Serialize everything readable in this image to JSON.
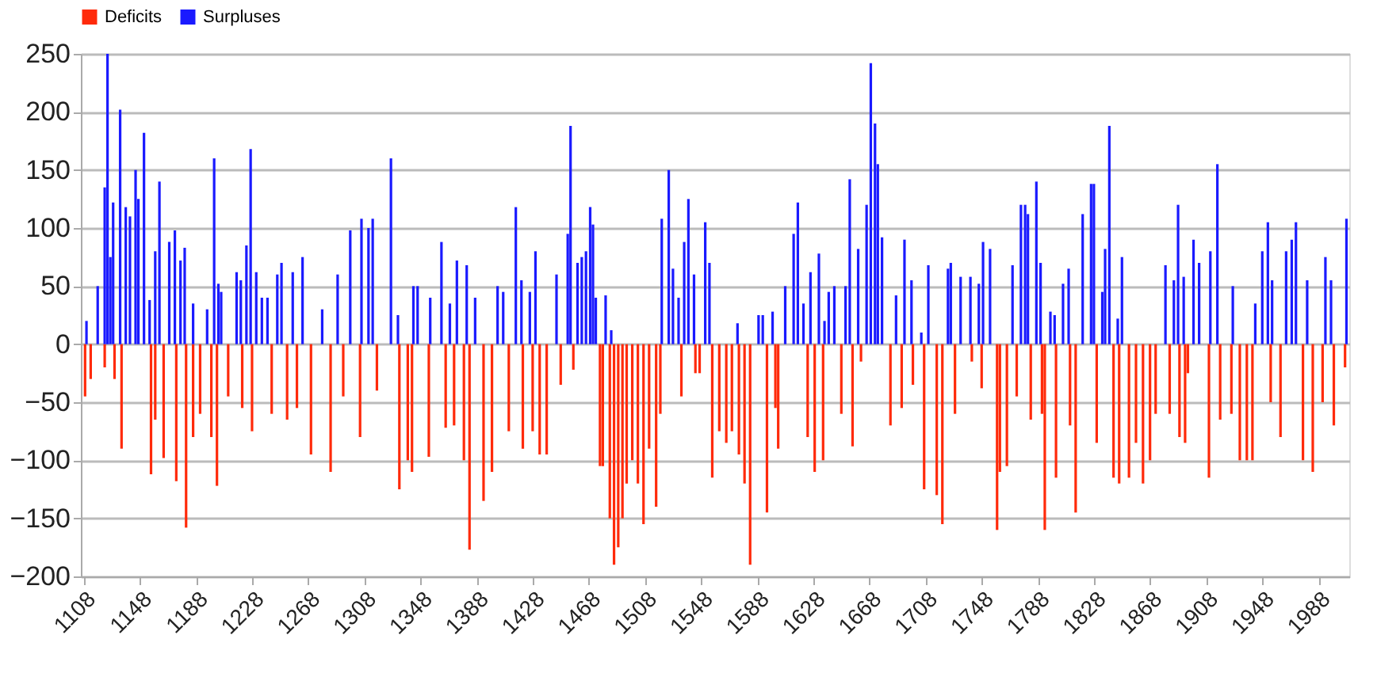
{
  "chart_data": {
    "type": "bar",
    "xlim": [
      1106,
      2010
    ],
    "xticks": [
      1108,
      1148,
      1188,
      1228,
      1268,
      1308,
      1348,
      1388,
      1428,
      1468,
      1508,
      1548,
      1588,
      1628,
      1668,
      1708,
      1748,
      1788,
      1828,
      1868,
      1908,
      1948,
      1988
    ],
    "ylim": [
      -200,
      250
    ],
    "yticks": [
      -200,
      -150,
      -100,
      -50,
      0,
      50,
      100,
      150,
      200,
      250
    ],
    "grid": "y",
    "legend": "top",
    "series": [
      {
        "name": "Deficits",
        "color": "#ff2a0a",
        "x": [
          1109,
          1113,
          1123,
          1130,
          1135,
          1156,
          1159,
          1165,
          1174,
          1181,
          1186,
          1191,
          1199,
          1203,
          1211,
          1221,
          1228,
          1242,
          1253,
          1260,
          1270,
          1284,
          1293,
          1305,
          1317,
          1333,
          1339,
          1342,
          1354,
          1366,
          1372,
          1379,
          1383,
          1393,
          1399,
          1411,
          1421,
          1428,
          1433,
          1438,
          1448,
          1457,
          1476,
          1478,
          1483,
          1486,
          1489,
          1492,
          1495,
          1499,
          1503,
          1507,
          1511,
          1516,
          1519,
          1534,
          1544,
          1547,
          1556,
          1561,
          1566,
          1570,
          1575,
          1579,
          1583,
          1595,
          1601,
          1603,
          1624,
          1629,
          1635,
          1648,
          1656,
          1662,
          1683,
          1691,
          1699,
          1707,
          1716,
          1720,
          1729,
          1741,
          1748,
          1759,
          1761,
          1766,
          1773,
          1783,
          1791,
          1793,
          1801,
          1811,
          1815,
          1830,
          1842,
          1846,
          1853,
          1858,
          1863,
          1868,
          1872,
          1882,
          1889,
          1893,
          1895,
          1910,
          1918,
          1926,
          1932,
          1937,
          1941,
          1954,
          1961,
          1977,
          1984,
          1991,
          1999,
          2007
        ],
        "values": [
          -45,
          -30,
          -20,
          -30,
          -90,
          -112,
          -65,
          -98,
          -118,
          -158,
          -80,
          -60,
          -80,
          -122,
          -45,
          -55,
          -75,
          -60,
          -65,
          -55,
          -95,
          -110,
          -45,
          -80,
          -40,
          -125,
          -100,
          -110,
          -97,
          -72,
          -70,
          -100,
          -177,
          -135,
          -110,
          -75,
          -90,
          -75,
          -95,
          -95,
          -35,
          -22,
          -105,
          -105,
          -150,
          -190,
          -175,
          -150,
          -120,
          -100,
          -120,
          -155,
          -90,
          -140,
          -60,
          -45,
          -25,
          -25,
          -115,
          -75,
          -85,
          -75,
          -95,
          -120,
          -190,
          -145,
          -55,
          -90,
          -80,
          -110,
          -100,
          -60,
          -88,
          -15,
          -70,
          -55,
          -35,
          -125,
          -130,
          -155,
          -60,
          -15,
          -38,
          -160,
          -110,
          -105,
          -45,
          -65,
          -60,
          -160,
          -115,
          -70,
          -145,
          -85,
          -115,
          -120,
          -115,
          -85,
          -120,
          -100,
          -60,
          -60,
          -80,
          -85,
          -25,
          -115,
          -65,
          -60,
          -100,
          -100,
          -100,
          -50,
          -80,
          -100,
          -110,
          -50,
          -70,
          -20
        ]
      },
      {
        "name": "Surpluses",
        "color": "#1a1aff",
        "x": [
          1110,
          1118,
          1123,
          1125,
          1127,
          1129,
          1134,
          1138,
          1141,
          1145,
          1147,
          1151,
          1155,
          1159,
          1162,
          1169,
          1173,
          1177,
          1180,
          1186,
          1196,
          1201,
          1204,
          1206,
          1217,
          1220,
          1224,
          1227,
          1231,
          1235,
          1239,
          1246,
          1249,
          1257,
          1264,
          1278,
          1289,
          1298,
          1306,
          1311,
          1314,
          1327,
          1332,
          1343,
          1346,
          1355,
          1363,
          1369,
          1374,
          1381,
          1387,
          1403,
          1407,
          1416,
          1420,
          1426,
          1430,
          1445,
          1453,
          1455,
          1460,
          1463,
          1466,
          1469,
          1471,
          1473,
          1480,
          1484,
          1520,
          1525,
          1528,
          1532,
          1536,
          1539,
          1543,
          1551,
          1554,
          1574,
          1589,
          1592,
          1599,
          1608,
          1614,
          1617,
          1621,
          1626,
          1632,
          1636,
          1639,
          1643,
          1651,
          1654,
          1660,
          1666,
          1669,
          1672,
          1674,
          1677,
          1687,
          1693,
          1698,
          1705,
          1710,
          1724,
          1726,
          1733,
          1740,
          1746,
          1749,
          1754,
          1770,
          1776,
          1779,
          1781,
          1787,
          1790,
          1797,
          1800,
          1806,
          1810,
          1820,
          1826,
          1828,
          1834,
          1836,
          1839,
          1845,
          1848,
          1879,
          1885,
          1888,
          1892,
          1899,
          1903,
          1911,
          1916,
          1927,
          1943,
          1948,
          1952,
          1955,
          1965,
          1969,
          1972,
          1980,
          1993,
          1997,
          2008
        ],
        "values": [
          20,
          50,
          135,
          250,
          75,
          122,
          202,
          118,
          110,
          150,
          125,
          182,
          38,
          80,
          140,
          88,
          98,
          72,
          83,
          35,
          30,
          160,
          52,
          45,
          62,
          55,
          85,
          168,
          62,
          40,
          40,
          60,
          70,
          62,
          75,
          30,
          60,
          98,
          108,
          100,
          108,
          160,
          25,
          50,
          50,
          40,
          88,
          35,
          72,
          68,
          40,
          50,
          45,
          118,
          55,
          45,
          80,
          60,
          95,
          188,
          70,
          75,
          80,
          118,
          103,
          40,
          42,
          12,
          108,
          150,
          65,
          40,
          88,
          125,
          60,
          105,
          70,
          18,
          25,
          25,
          28,
          50,
          95,
          122,
          35,
          62,
          78,
          20,
          45,
          50,
          50,
          142,
          82,
          120,
          242,
          190,
          155,
          92,
          42,
          90,
          55,
          10,
          68,
          65,
          70,
          58,
          58,
          52,
          88,
          82,
          68,
          120,
          120,
          112,
          140,
          70,
          28,
          25,
          52,
          65,
          112,
          138,
          138,
          45,
          82,
          188,
          22,
          75,
          68,
          55,
          120,
          58,
          90,
          70,
          80,
          155,
          50,
          35,
          80,
          105,
          55,
          80,
          90,
          105,
          55,
          75,
          55,
          108
        ]
      }
    ]
  }
}
